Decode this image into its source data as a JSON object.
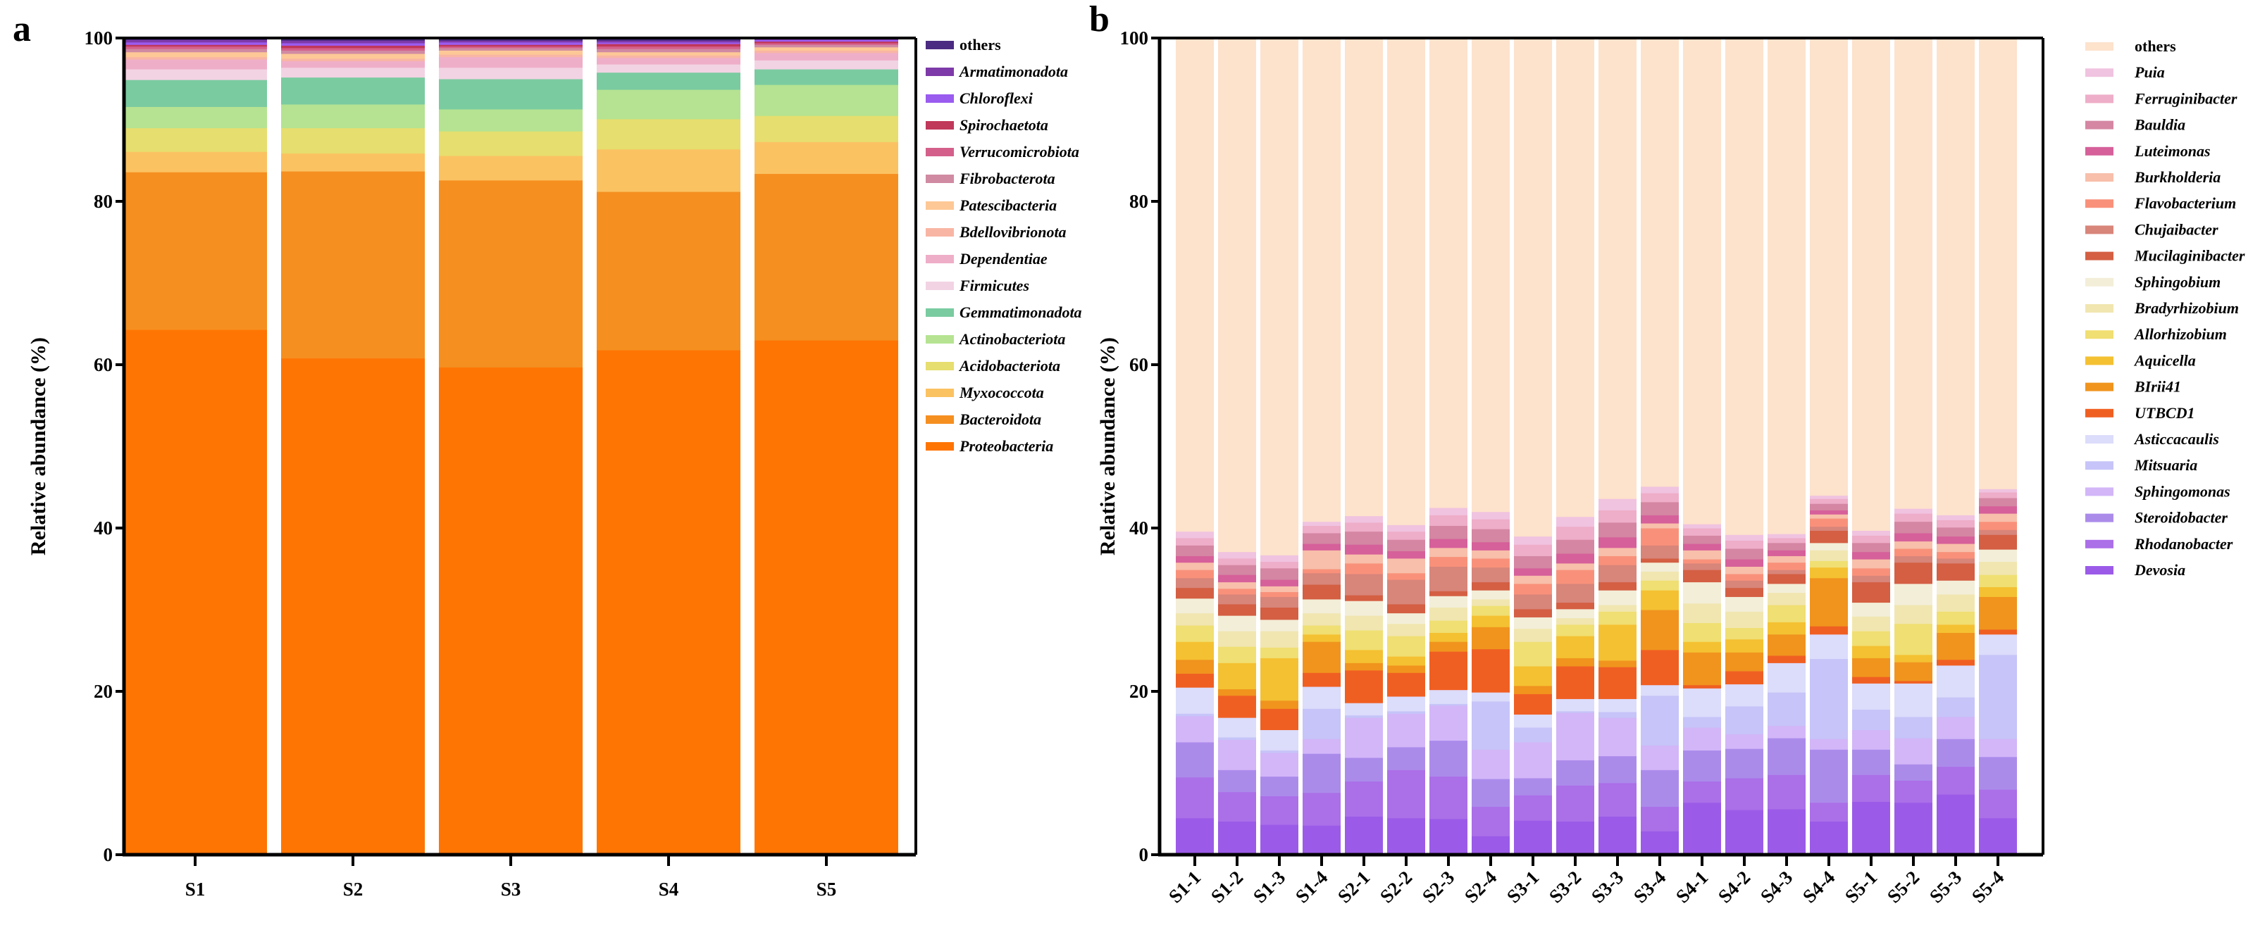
{
  "chart_data": [
    {
      "type": "bar",
      "stacked": true,
      "panel_label": "a",
      "title": "",
      "xlabel": "",
      "ylabel": "Relative abundance (%)",
      "ylim": [
        0,
        100
      ],
      "yticks": [
        "0",
        "20",
        "40",
        "60",
        "80",
        "100"
      ],
      "grid": false,
      "legend_position": "right",
      "categories": [
        "S1",
        "S2",
        "S3",
        "S4",
        "S5"
      ],
      "series": [
        {
          "name": "Proteobacteria",
          "color": "#ff7503",
          "values": [
            64.3,
            60.8,
            59.7,
            61.8,
            63.0
          ]
        },
        {
          "name": "Bacteroidota",
          "color": "#f58f20",
          "values": [
            19.3,
            22.9,
            22.9,
            19.4,
            20.4
          ]
        },
        {
          "name": "Myxococcota",
          "color": "#fbc262",
          "values": [
            2.5,
            2.2,
            3.0,
            5.2,
            3.9
          ]
        },
        {
          "name": "Acidobacteriota",
          "color": "#e6de6e",
          "values": [
            2.9,
            3.1,
            3.0,
            3.7,
            3.2
          ]
        },
        {
          "name": "Actinobacteriota",
          "color": "#b5e391",
          "values": [
            2.6,
            2.9,
            2.7,
            3.6,
            3.8
          ]
        },
        {
          "name": "Gemmatimonadota",
          "color": "#7acba0",
          "values": [
            3.3,
            3.3,
            3.7,
            2.1,
            1.9
          ]
        },
        {
          "name": "Firmicutes",
          "color": "#f2d3e3",
          "values": [
            1.3,
            1.2,
            1.4,
            1.0,
            1.1
          ]
        },
        {
          "name": "Dependentiae",
          "color": "#efaec8",
          "values": [
            1.2,
            0.8,
            1.3,
            0.8,
            0.9
          ]
        },
        {
          "name": "Bdellovibrionota",
          "color": "#f9b5a4",
          "values": [
            0.3,
            0.3,
            0.3,
            0.3,
            0.3
          ]
        },
        {
          "name": "Patescibacteria",
          "color": "#fdc896",
          "values": [
            0.6,
            0.6,
            0.5,
            0.4,
            0.4
          ]
        },
        {
          "name": "Fibrobacterota",
          "color": "#d08aa2",
          "values": [
            0.4,
            0.4,
            0.3,
            0.4,
            0.3
          ]
        },
        {
          "name": "Verrucomicrobiota",
          "color": "#d45f8a",
          "values": [
            0.3,
            0.3,
            0.2,
            0.3,
            0.2
          ]
        },
        {
          "name": "Spirochaetota",
          "color": "#c0385a",
          "values": [
            0.2,
            0.3,
            0.2,
            0.3,
            0.2
          ]
        },
        {
          "name": "Chloroflexi",
          "color": "#9a5bef",
          "values": [
            0.3,
            0.3,
            0.3,
            0.2,
            0.2
          ]
        },
        {
          "name": "Armatimonadota",
          "color": "#7e3aa8",
          "values": [
            0.3,
            0.3,
            0.2,
            0.2,
            0.1
          ]
        },
        {
          "name": "others",
          "color": "#4b2a82",
          "values": [
            0.2,
            0.3,
            0.3,
            0.3,
            0.1
          ]
        }
      ]
    },
    {
      "type": "bar",
      "stacked": true,
      "panel_label": "b",
      "title": "",
      "xlabel": "",
      "ylabel": "Relative abundance (%)",
      "ylim": [
        0,
        100
      ],
      "yticks": [
        "0",
        "20",
        "40",
        "60",
        "80",
        "100"
      ],
      "grid": false,
      "legend_position": "right",
      "categories": [
        "S1-1",
        "S1-2",
        "S1-3",
        "S1-4",
        "S2-1",
        "S2-2",
        "S2-3",
        "S2-4",
        "S3-1",
        "S3-2",
        "S3-3",
        "S3-4",
        "S4-1",
        "S4-2",
        "S4-3",
        "S4-4",
        "S5-1",
        "S5-2",
        "S5-3",
        "S5-4"
      ],
      "series": [
        {
          "name": "Devosia",
          "color": "#9b5be8",
          "values": [
            4.5,
            4.1,
            3.7,
            3.6,
            4.7,
            4.5,
            4.4,
            2.3,
            4.2,
            4.1,
            4.7,
            2.9,
            6.4,
            5.5,
            5.6,
            4.1,
            6.5,
            6.4,
            7.4,
            4.5
          ]
        },
        {
          "name": "Rhodanobacter",
          "color": "#ab6fe8",
          "values": [
            5.0,
            3.6,
            3.5,
            4.0,
            4.3,
            5.9,
            5.2,
            3.6,
            3.1,
            4.4,
            4.1,
            3.0,
            2.6,
            3.9,
            4.2,
            2.3,
            3.3,
            2.7,
            3.4,
            3.5
          ]
        },
        {
          "name": "Steroidobacter",
          "color": "#ab8bea",
          "values": [
            4.3,
            2.7,
            2.4,
            4.8,
            2.9,
            2.8,
            4.4,
            3.4,
            2.1,
            3.1,
            3.3,
            4.5,
            3.8,
            3.6,
            4.5,
            6.5,
            3.1,
            2.0,
            3.4,
            4.0
          ]
        },
        {
          "name": "Sphingomonas",
          "color": "#d2b6f8",
          "values": [
            3.2,
            3.7,
            2.9,
            1.8,
            4.9,
            4.1,
            4.3,
            3.6,
            4.4,
            5.8,
            4.7,
            3.0,
            2.8,
            1.8,
            1.5,
            1.3,
            2.4,
            3.2,
            2.7,
            2.2
          ]
        },
        {
          "name": "Mitsuaria",
          "color": "#c6c4f8",
          "values": [
            0.3,
            0.3,
            0.3,
            3.7,
            0.3,
            0.3,
            0.2,
            5.9,
            1.8,
            0.2,
            0.7,
            6.1,
            1.3,
            3.4,
            4.1,
            9.8,
            2.5,
            2.6,
            2.4,
            10.3
          ]
        },
        {
          "name": "Asticcacaulis",
          "color": "#dcdcfb",
          "values": [
            3.2,
            2.4,
            2.5,
            2.7,
            1.5,
            1.8,
            1.7,
            1.1,
            1.6,
            1.5,
            1.6,
            1.3,
            3.5,
            2.7,
            3.6,
            3.0,
            3.2,
            4.1,
            3.9,
            2.5
          ]
        },
        {
          "name": "UTBCD1",
          "color": "#f05f22",
          "values": [
            1.7,
            2.7,
            2.6,
            1.7,
            4.0,
            2.9,
            4.7,
            5.3,
            2.5,
            4.0,
            3.9,
            4.3,
            0.4,
            1.6,
            0.9,
            1.0,
            0.8,
            0.3,
            0.7,
            0.6
          ]
        },
        {
          "name": "BIrii41",
          "color": "#f0941e",
          "values": [
            1.7,
            0.8,
            1.0,
            3.8,
            0.9,
            0.9,
            1.2,
            2.7,
            1.0,
            1.0,
            0.8,
            4.9,
            4.0,
            2.3,
            2.6,
            5.9,
            2.3,
            2.3,
            3.3,
            4.0
          ]
        },
        {
          "name": "Aquicella",
          "color": "#f4c132",
          "values": [
            2.2,
            3.2,
            5.2,
            0.9,
            1.6,
            1.1,
            1.1,
            1.4,
            2.4,
            2.7,
            4.4,
            2.4,
            1.3,
            1.6,
            1.5,
            1.3,
            1.5,
            0.9,
            1.0,
            1.2
          ]
        },
        {
          "name": "Allorhizobium",
          "color": "#f0df72",
          "values": [
            2.0,
            2.0,
            1.3,
            1.1,
            2.4,
            2.5,
            1.5,
            1.2,
            3.0,
            1.4,
            1.6,
            1.2,
            2.3,
            1.4,
            2.1,
            0.8,
            1.8,
            3.8,
            1.6,
            1.5
          ]
        },
        {
          "name": "Bradyrhizobium",
          "color": "#f1e6b0",
          "values": [
            1.5,
            1.9,
            2.0,
            1.5,
            1.8,
            1.5,
            1.6,
            0.8,
            1.6,
            0.8,
            0.8,
            1.1,
            2.4,
            2.0,
            1.5,
            1.3,
            1.8,
            2.3,
            2.1,
            1.6
          ]
        },
        {
          "name": "Sphingobium",
          "color": "#f3eed8",
          "values": [
            1.8,
            1.9,
            1.4,
            1.7,
            1.8,
            1.3,
            1.4,
            1.1,
            1.4,
            1.1,
            1.8,
            1.1,
            2.6,
            1.8,
            1.1,
            0.9,
            1.7,
            2.6,
            1.7,
            1.5
          ]
        },
        {
          "name": "Mucilaginibacter",
          "color": "#d45f43",
          "values": [
            1.3,
            1.4,
            1.5,
            1.8,
            0.7,
            1.1,
            0.6,
            1.0,
            1.0,
            0.8,
            1.0,
            0.5,
            1.5,
            1.1,
            1.2,
            1.5,
            2.5,
            2.6,
            2.1,
            1.8
          ]
        },
        {
          "name": "Chujaibacter",
          "color": "#d8857a",
          "values": [
            1.2,
            1.2,
            1.3,
            1.4,
            2.6,
            3.0,
            3.0,
            1.8,
            1.8,
            2.3,
            2.1,
            1.6,
            0.8,
            0.9,
            0.5,
            0.5,
            0.8,
            0.8,
            0.6,
            0.6
          ]
        },
        {
          "name": "Flavobacterium",
          "color": "#f9917a",
          "values": [
            1.0,
            0.7,
            0.6,
            0.5,
            1.3,
            0.8,
            1.2,
            1.1,
            1.3,
            1.7,
            1.1,
            2.1,
            0.5,
            0.8,
            0.9,
            1.0,
            0.9,
            0.9,
            0.8,
            1.0
          ]
        },
        {
          "name": "Burkholderia",
          "color": "#f8bfaa",
          "values": [
            0.9,
            0.8,
            0.7,
            2.3,
            1.1,
            1.8,
            1.1,
            1.0,
            1.0,
            0.8,
            1.0,
            0.6,
            1.1,
            0.9,
            0.8,
            0.5,
            1.1,
            0.9,
            1.0,
            1.0
          ]
        },
        {
          "name": "Luteimonas",
          "color": "#d6609a",
          "values": [
            0.8,
            0.9,
            0.8,
            0.8,
            1.2,
            0.9,
            1.1,
            1.0,
            0.9,
            1.2,
            1.3,
            1.0,
            0.8,
            0.9,
            0.7,
            0.5,
            0.9,
            1.0,
            0.9,
            0.9
          ]
        },
        {
          "name": "Bauldia",
          "color": "#d486a2",
          "values": [
            1.3,
            1.2,
            1.4,
            1.3,
            1.6,
            1.4,
            1.6,
            1.6,
            1.5,
            1.7,
            1.8,
            1.6,
            1.0,
            1.3,
            0.9,
            0.8,
            1.1,
            1.4,
            1.1,
            1.0
          ]
        },
        {
          "name": "Ferruginibacter",
          "color": "#eeadc8",
          "values": [
            0.9,
            0.8,
            0.8,
            0.9,
            1.1,
            1.0,
            1.3,
            1.2,
            1.4,
            1.6,
            1.5,
            1.1,
            0.9,
            1.0,
            0.6,
            0.6,
            0.9,
            1.0,
            0.9,
            0.7
          ]
        },
        {
          "name": "Puia",
          "color": "#f0c3e0",
          "values": [
            0.8,
            0.8,
            0.8,
            0.5,
            0.8,
            0.8,
            0.9,
            0.9,
            1.0,
            1.2,
            1.4,
            0.8,
            0.5,
            0.7,
            0.5,
            0.4,
            0.6,
            0.6,
            0.6,
            0.4
          ]
        },
        {
          "name": "others",
          "color": "#fde2cc",
          "values": [
            60.4,
            62.9,
            63.3,
            59.2,
            58.5,
            59.6,
            57.5,
            58.0,
            61.0,
            58.6,
            56.4,
            54.9,
            59.5,
            60.8,
            60.7,
            56.0,
            60.3,
            57.6,
            58.4,
            55.2
          ]
        }
      ]
    }
  ]
}
